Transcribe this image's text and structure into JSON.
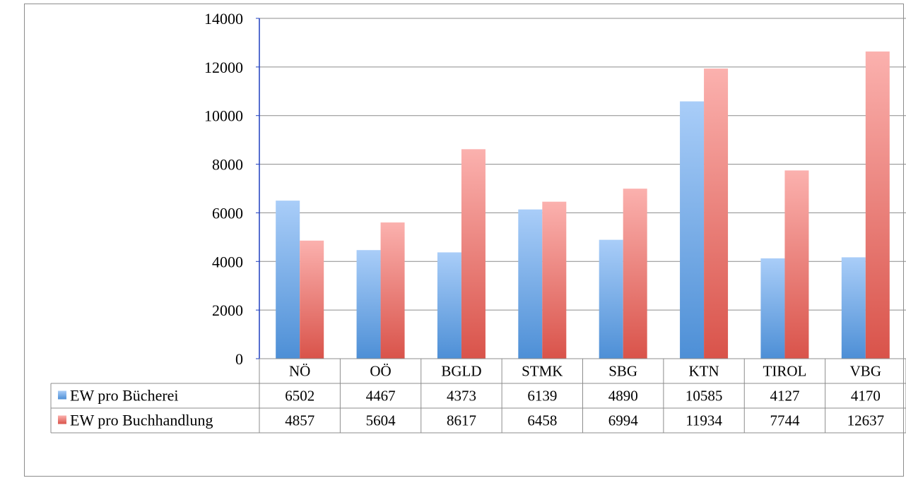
{
  "chart_data": {
    "type": "bar",
    "title": "",
    "xlabel": "",
    "ylabel": "",
    "categories": [
      "NÖ",
      "OÖ",
      "BGLD",
      "STMK",
      "SBG",
      "KTN",
      "TIROL",
      "VBG"
    ],
    "series": [
      {
        "name": "EW pro Bücherei",
        "values": [
          6502,
          4467,
          4373,
          6139,
          4890,
          10585,
          4127,
          4170
        ],
        "color_top": "#a9cdf8",
        "color_bottom": "#4d8fd6"
      },
      {
        "name": "EW pro Buchhandlung",
        "values": [
          4857,
          5604,
          8617,
          6458,
          6994,
          11934,
          7744,
          12637
        ],
        "color_top": "#fbb1ae",
        "color_bottom": "#d9534a"
      }
    ],
    "ylim": [
      0,
      14000
    ],
    "yticks": [
      0,
      2000,
      4000,
      6000,
      8000,
      10000,
      12000,
      14000
    ],
    "grid": true,
    "legend": "data-table"
  }
}
